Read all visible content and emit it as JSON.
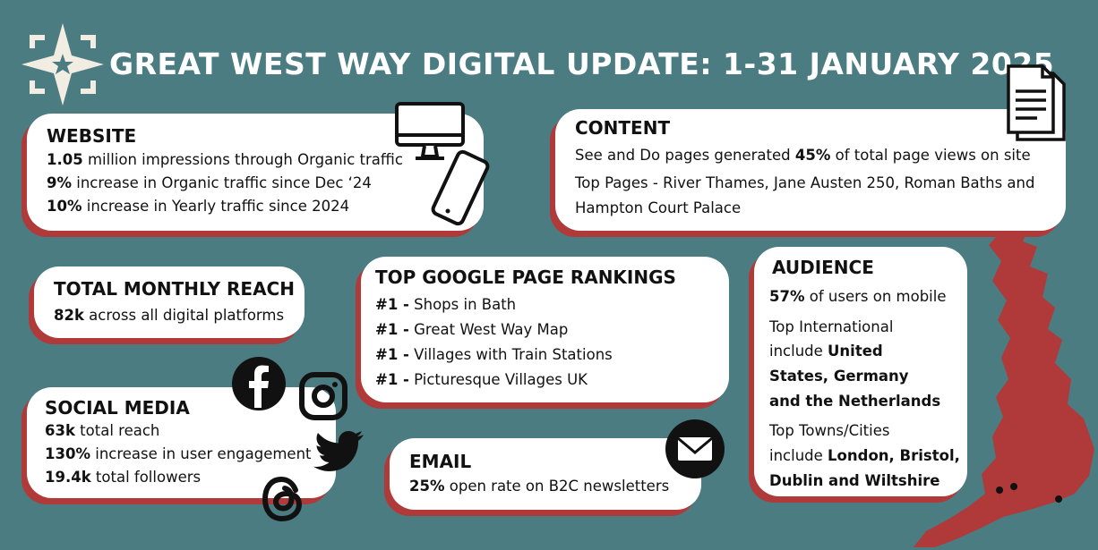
{
  "title": "GREAT WEST WAY DIGITAL UPDATE: 1-31 JANUARY 2025",
  "website": {
    "heading": "WEBSITE",
    "lines": [
      {
        "bold": "1.05",
        "text": " million impressions through Organic traffic"
      },
      {
        "bold": "9%",
        "text": " increase in Organic traffic since Dec ‘24"
      },
      {
        "bold": "10%",
        "text": " increase in Yearly traffic since 2024"
      }
    ]
  },
  "content": {
    "heading": "CONTENT",
    "line1_pre": "See and Do pages generated ",
    "line1_bold": "45%",
    "line1_post": " of total page views on site",
    "line2": "Top Pages - River Thames, Jane Austen 250, Roman Baths and",
    "line3": "Hampton Court Palace"
  },
  "reach": {
    "heading": "TOTAL MONTHLY REACH",
    "bold": "82k",
    "text": " across all digital platforms"
  },
  "rankings": {
    "heading": "TOP GOOGLE PAGE RANKINGS",
    "items": [
      {
        "rank": "#1 -",
        "text": " Shops in Bath"
      },
      {
        "rank": "#1 -",
        "text": " Great West Way Map"
      },
      {
        "rank": "#1 -",
        "text": " Villages with Train Stations"
      },
      {
        "rank": "#1 -",
        "text": " Picturesque Villages UK"
      }
    ]
  },
  "audience": {
    "heading": "AUDIENCE",
    "mobile_bold": "57%",
    "mobile_text": " of users on mobile",
    "intl_1": "Top International",
    "intl_2_pre": "include ",
    "intl_2_bold": "United",
    "intl_3": "States, Germany",
    "intl_4": "and the Netherlands",
    "towns_1": "Top Towns/Cities",
    "towns_2_pre": "include ",
    "towns_2_bold": "London, Bristol,",
    "towns_3": "Dublin and Wiltshire"
  },
  "social": {
    "heading": "SOCIAL MEDIA",
    "lines": [
      {
        "bold": "63k",
        "text": " total reach"
      },
      {
        "bold": "130%",
        "text": " increase in user engagement"
      },
      {
        "bold": "19.4k",
        "text": " total followers"
      }
    ]
  },
  "email": {
    "heading": "EMAIL",
    "bold": "25%",
    "text": " open rate on B2C newsletters"
  },
  "colors": {
    "background": "#4b7c81",
    "accent": "#b03a3a",
    "card": "#ffffff"
  }
}
